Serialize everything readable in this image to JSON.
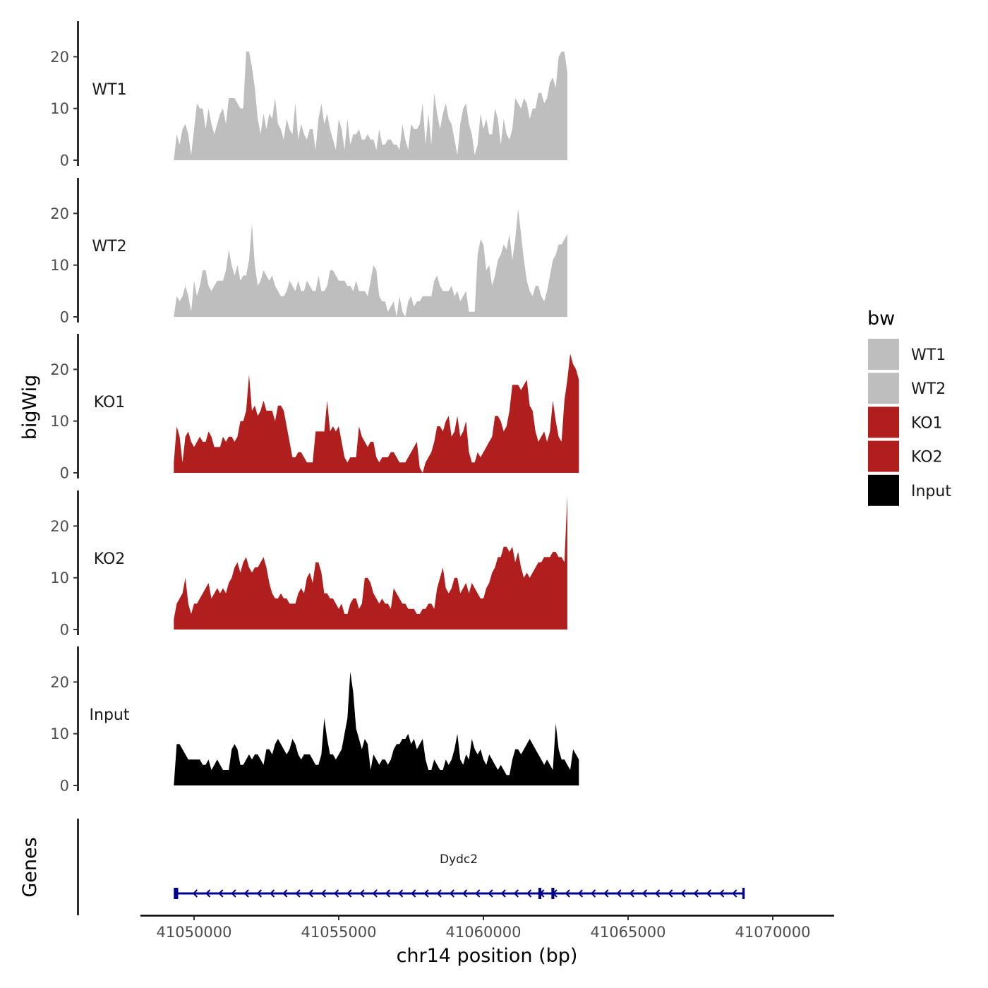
{
  "chart_data": {
    "type": "area",
    "chromosome": "chr14",
    "xlabel": "chr14 position (bp)",
    "ylabel": "bigWig",
    "xlim": [
      41048800,
      41071700
    ],
    "x_ticks": [
      41050000,
      41055000,
      41060000,
      41065000,
      41070000
    ],
    "x_tick_labels": [
      "41050000",
      "41055000",
      "41060000",
      "41065000",
      "41070000"
    ],
    "ylim": [
      0,
      27
    ],
    "y_ticks": [
      0,
      10,
      20
    ],
    "y_tick_labels": [
      "0",
      "10",
      "20"
    ],
    "x_start": 41049300,
    "x_step": 100,
    "series": [
      {
        "name": "WT1",
        "color": "#bebebe",
        "values": [
          0,
          5,
          3,
          6,
          7,
          5,
          1,
          6,
          11,
          10,
          10,
          6,
          10,
          7,
          5,
          7,
          9,
          10,
          7,
          12,
          12,
          12,
          11,
          10,
          10,
          21,
          21,
          18,
          14,
          8,
          5,
          9,
          6,
          9,
          8,
          12,
          7,
          6,
          4,
          8,
          6,
          5,
          11,
          4,
          7,
          5,
          4,
          6,
          6,
          2,
          8,
          11,
          7,
          9,
          6,
          4,
          2,
          8,
          6,
          2,
          8,
          3,
          5,
          5,
          6,
          4,
          4,
          5,
          4,
          4,
          2,
          6,
          3,
          3,
          4,
          4,
          3,
          3,
          2,
          7,
          4,
          2,
          7,
          6,
          6,
          7,
          11,
          3,
          9,
          3,
          13,
          9,
          6,
          9,
          11,
          8,
          7,
          4,
          1,
          7,
          10,
          11,
          7,
          5,
          1,
          3,
          9,
          6,
          8,
          5,
          5,
          10,
          8,
          3,
          8,
          5,
          4,
          6,
          12,
          11,
          10,
          12,
          11,
          8,
          10,
          10,
          13,
          13,
          11,
          12,
          15,
          16,
          14,
          20,
          21,
          21,
          17
        ]
      },
      {
        "name": "WT2",
        "color": "#bebebe",
        "values": [
          0,
          4,
          3,
          4,
          6,
          4,
          1,
          7,
          4,
          6,
          9,
          9,
          6,
          5,
          6,
          7,
          7,
          7,
          9,
          13,
          10,
          8,
          10,
          7,
          8,
          8,
          11,
          18,
          10,
          6,
          7,
          9,
          8,
          7,
          8,
          6,
          5,
          4,
          4,
          5,
          7,
          6,
          5,
          7,
          5,
          5,
          7,
          6,
          5,
          5,
          8,
          5,
          5,
          6,
          9,
          9,
          8,
          7,
          7,
          7,
          6,
          6,
          5,
          7,
          5,
          5,
          5,
          4,
          7,
          10,
          9,
          4,
          3,
          3,
          1,
          2,
          3,
          0,
          4,
          1,
          0,
          3,
          4,
          2,
          3,
          3,
          4,
          4,
          4,
          4,
          7,
          8,
          6,
          5,
          5,
          5,
          6,
          4,
          5,
          3,
          4,
          5,
          1,
          1,
          1,
          12,
          15,
          14,
          9,
          10,
          6,
          8,
          11,
          12,
          14,
          13,
          16,
          11,
          15,
          21,
          16,
          11,
          7,
          5,
          4,
          6,
          6,
          4,
          3,
          5,
          8,
          11,
          12,
          14,
          14,
          15,
          16
        ]
      },
      {
        "name": "KO1",
        "color": "#b11e1e",
        "values": [
          2,
          9,
          7,
          2,
          7,
          8,
          6,
          5,
          6,
          7,
          6,
          6,
          8,
          7,
          5,
          5,
          5,
          7,
          6,
          7,
          7,
          6,
          7,
          10,
          10,
          12,
          19,
          12,
          13,
          11,
          12,
          14,
          12,
          12,
          12,
          10,
          13,
          13,
          12,
          9,
          6,
          3,
          3,
          4,
          4,
          3,
          2,
          2,
          2,
          8,
          8,
          8,
          8,
          14,
          8,
          9,
          8,
          9,
          6,
          3,
          2,
          3,
          3,
          3,
          9,
          7,
          6,
          5,
          6,
          6,
          3,
          2,
          3,
          3,
          3,
          4,
          4,
          3,
          2,
          2,
          2,
          3,
          4,
          5,
          6,
          1,
          0,
          2,
          3,
          4,
          6,
          9,
          9,
          8,
          10,
          11,
          7,
          8,
          11,
          7,
          8,
          10,
          4,
          2,
          2,
          4,
          3,
          4,
          5,
          6,
          7,
          11,
          11,
          10,
          8,
          9,
          12,
          17,
          17,
          17,
          16,
          17,
          18,
          13,
          12,
          8,
          6,
          7,
          8,
          6,
          8,
          14,
          10,
          7,
          6,
          14,
          18,
          23,
          21,
          20,
          18
        ]
      },
      {
        "name": "KO2",
        "color": "#b11e1e",
        "values": [
          2,
          5,
          6,
          7,
          10,
          5,
          3,
          5,
          5,
          6,
          7,
          8,
          9,
          6,
          7,
          8,
          7,
          8,
          7,
          9,
          10,
          12,
          13,
          11,
          13,
          14,
          12,
          11,
          12,
          12,
          13,
          14,
          12,
          9,
          7,
          6,
          6,
          7,
          6,
          6,
          5,
          5,
          5,
          7,
          8,
          7,
          10,
          11,
          9,
          13,
          13,
          11,
          7,
          7,
          6,
          6,
          5,
          4,
          5,
          3,
          3,
          5,
          6,
          6,
          4,
          5,
          10,
          10,
          9,
          7,
          6,
          5,
          6,
          5,
          5,
          4,
          8,
          7,
          6,
          5,
          5,
          4,
          4,
          4,
          3,
          3,
          4,
          4,
          5,
          5,
          4,
          8,
          10,
          12,
          8,
          7,
          8,
          10,
          10,
          7,
          8,
          9,
          7,
          9,
          8,
          7,
          6,
          6,
          8,
          9,
          11,
          12,
          14,
          14,
          16,
          16,
          15,
          16,
          13,
          15,
          12,
          10,
          11,
          10,
          11,
          12,
          13,
          13,
          14,
          14,
          14,
          15,
          15,
          14,
          14,
          13,
          26
        ]
      },
      {
        "name": "Input",
        "color": "#000000",
        "values": [
          0,
          8,
          8,
          7,
          6,
          5,
          5,
          5,
          5,
          5,
          4,
          4,
          5,
          3,
          4,
          5,
          4,
          3,
          3,
          3,
          7,
          8,
          7,
          4,
          4,
          5,
          6,
          5,
          6,
          6,
          5,
          4,
          7,
          7,
          6,
          8,
          9,
          8,
          7,
          6,
          7,
          9,
          8,
          6,
          5,
          6,
          6,
          6,
          5,
          4,
          4,
          6,
          13,
          9,
          6,
          6,
          5,
          6,
          7,
          10,
          13,
          22,
          18,
          11,
          9,
          7,
          9,
          8,
          3,
          6,
          5,
          4,
          5,
          5,
          4,
          5,
          7,
          8,
          8,
          9,
          9,
          10,
          8,
          9,
          7,
          8,
          9,
          5,
          3,
          3,
          5,
          4,
          3,
          3,
          5,
          4,
          5,
          7,
          10,
          5,
          4,
          6,
          5,
          9,
          7,
          6,
          7,
          5,
          4,
          6,
          5,
          4,
          3,
          4,
          3,
          2,
          2,
          5,
          7,
          7,
          6,
          7,
          8,
          9,
          8,
          7,
          6,
          5,
          4,
          5,
          4,
          3,
          12,
          7,
          5,
          5,
          4,
          3,
          7,
          6,
          5
        ]
      }
    ],
    "legend": {
      "title": "bw",
      "position": "right",
      "entries": [
        "WT1",
        "WT2",
        "KO1",
        "KO2",
        "Input"
      ]
    },
    "genes_track": {
      "title": "Genes",
      "genes": [
        {
          "name": "Dydc2",
          "strand": "-",
          "color": "#00008b",
          "start": 41049300,
          "end": 41069000,
          "exons": [
            [
              41049300,
              41049450
            ],
            [
              41061900,
              41062000
            ],
            [
              41062350,
              41062450
            ],
            [
              41068950,
              41069000
            ]
          ]
        }
      ]
    }
  }
}
